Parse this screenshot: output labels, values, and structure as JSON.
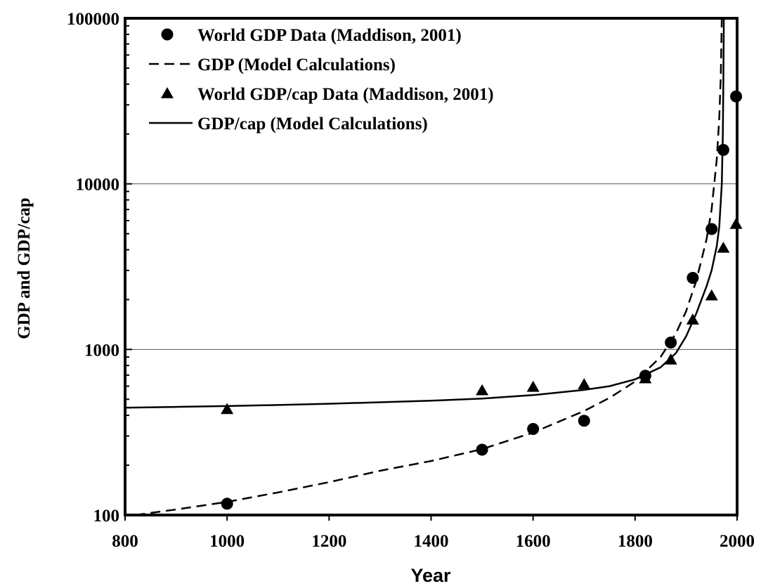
{
  "chart_data": {
    "type": "line",
    "xlabel": "Year",
    "ylabel": "GDP and GDP/cap",
    "xlim": [
      800,
      2000
    ],
    "ylim": [
      100,
      100000
    ],
    "y_scale": "log",
    "x_ticks": [
      800,
      1000,
      1200,
      1400,
      1600,
      1800,
      2000
    ],
    "x_tick_labels": [
      "800",
      "1000",
      "1200",
      "1400",
      "1600",
      "1800",
      "2000"
    ],
    "y_ticks": [
      100,
      1000,
      10000,
      100000
    ],
    "y_tick_labels": [
      "100",
      "1000",
      "10000",
      "100000"
    ],
    "grid": "horizontal major gridlines",
    "legend_position": "top-left",
    "series": [
      {
        "name": "World GDP Data (Maddison, 2001)",
        "kind": "scatter",
        "marker": "circle",
        "x": [
          1000,
          1500,
          1600,
          1700,
          1820,
          1870,
          1913,
          1950,
          1973,
          1998
        ],
        "y": [
          117,
          248,
          331,
          371,
          694,
          1101,
          2705,
          5336,
          16023,
          33726
        ]
      },
      {
        "name": "GDP (Model Calculations)",
        "kind": "line",
        "dash": "dashed",
        "x": [
          820,
          900,
          1000,
          1100,
          1200,
          1300,
          1400,
          1500,
          1600,
          1700,
          1750,
          1800,
          1850,
          1880,
          1900,
          1920,
          1940,
          1950,
          1960,
          1965,
          1968,
          1970
        ],
        "y": [
          100,
          108,
          120,
          137,
          158,
          185,
          212,
          250,
          315,
          425,
          510,
          640,
          900,
          1250,
          1700,
          2600,
          4600,
          7000,
          14000,
          25000,
          45000,
          100000
        ]
      },
      {
        "name": "World GDP/cap Data (Maddison, 2001)",
        "kind": "scatter",
        "marker": "triangle",
        "x": [
          1000,
          1500,
          1600,
          1700,
          1820,
          1870,
          1913,
          1950,
          1973,
          1998
        ],
        "y": [
          435,
          565,
          593,
          615,
          667,
          867,
          1510,
          2114,
          4104,
          5709
        ]
      },
      {
        "name": "GDP/cap (Model Calculations)",
        "kind": "line",
        "dash": "solid",
        "x": [
          800,
          900,
          1000,
          1100,
          1200,
          1300,
          1400,
          1500,
          1600,
          1700,
          1750,
          1800,
          1850,
          1880,
          1900,
          1920,
          1940,
          1950,
          1960,
          1965,
          1970,
          1972,
          1973,
          1974
        ],
        "y": [
          445,
          450,
          455,
          462,
          470,
          480,
          490,
          505,
          530,
          570,
          600,
          660,
          780,
          950,
          1200,
          1650,
          2400,
          3000,
          4200,
          5500,
          10000,
          20000,
          40000,
          100000
        ]
      }
    ]
  }
}
